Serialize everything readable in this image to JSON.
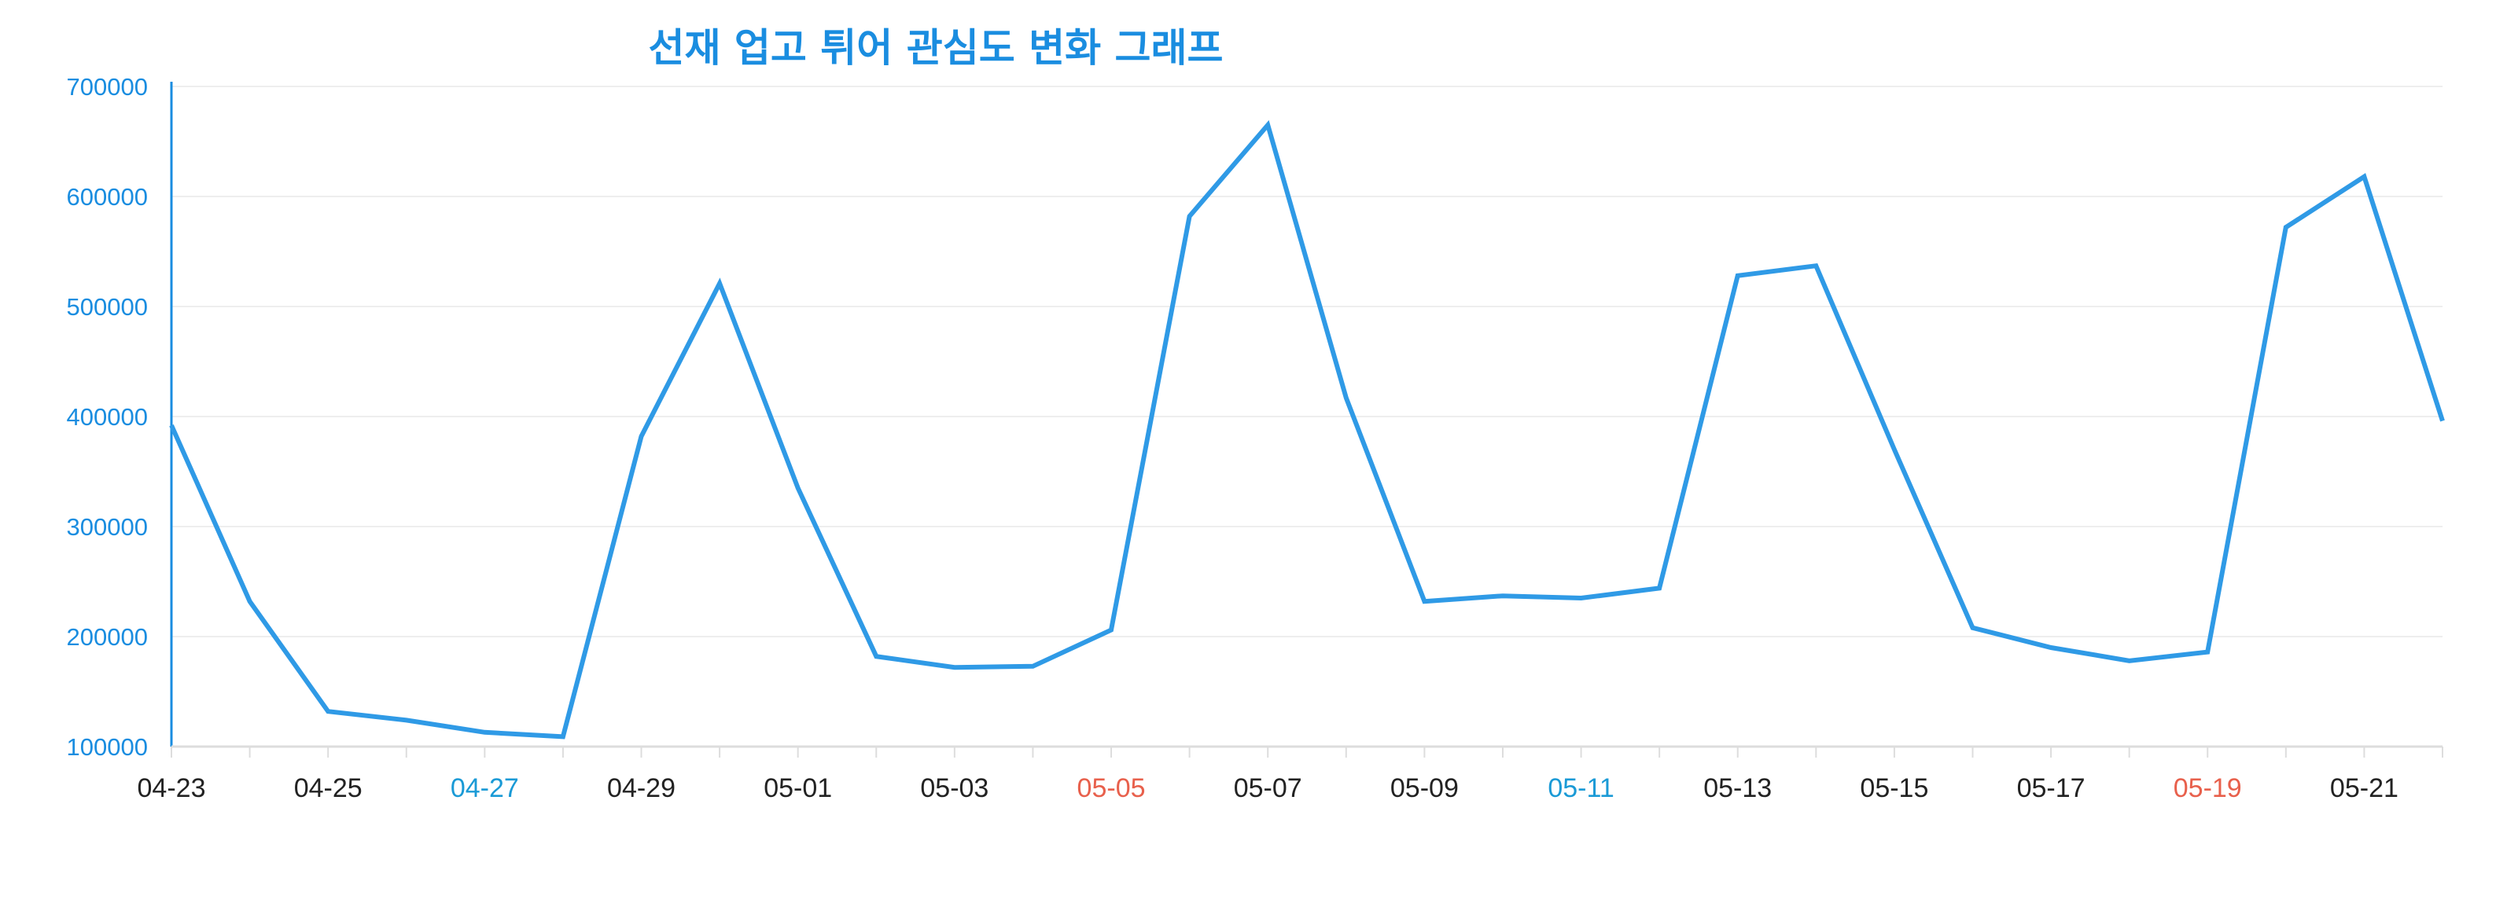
{
  "chart_data": {
    "type": "line",
    "title": "선재 업고 튀어 관심도 변화 그래프",
    "xlabel": "",
    "ylabel": "",
    "ylim": [
      100000,
      700000
    ],
    "yticks": [
      100000,
      200000,
      300000,
      400000,
      500000,
      600000,
      700000
    ],
    "grid": true,
    "legend": "none",
    "x": [
      "04-23",
      "04-24",
      "04-25",
      "04-26",
      "04-27",
      "04-28",
      "04-29",
      "04-30",
      "05-01",
      "05-02",
      "05-03",
      "05-04",
      "05-05",
      "05-06",
      "05-07",
      "05-08",
      "05-09",
      "05-10",
      "05-11",
      "05-12",
      "05-13",
      "05-14",
      "05-15",
      "05-16",
      "05-17",
      "05-18",
      "05-19",
      "05-20",
      "05-21",
      "05-22"
    ],
    "x_tick_labels": [
      {
        "label": "04-23",
        "color": "#222222"
      },
      {
        "label": "04-25",
        "color": "#222222"
      },
      {
        "label": "04-27",
        "color": "#1a9ad6"
      },
      {
        "label": "04-29",
        "color": "#222222"
      },
      {
        "label": "05-01",
        "color": "#222222"
      },
      {
        "label": "05-03",
        "color": "#222222"
      },
      {
        "label": "05-05",
        "color": "#e8604c"
      },
      {
        "label": "05-07",
        "color": "#222222"
      },
      {
        "label": "05-09",
        "color": "#222222"
      },
      {
        "label": "05-11",
        "color": "#1a9ad6"
      },
      {
        "label": "05-13",
        "color": "#222222"
      },
      {
        "label": "05-15",
        "color": "#222222"
      },
      {
        "label": "05-17",
        "color": "#222222"
      },
      {
        "label": "05-19",
        "color": "#e8604c"
      },
      {
        "label": "05-21",
        "color": "#222222"
      }
    ],
    "series": [
      {
        "values": [
          392000,
          232000,
          132000,
          124000,
          113000,
          109000,
          382000,
          521000,
          335000,
          182000,
          172000,
          173000,
          206000,
          582000,
          665000,
          417000,
          232000,
          237000,
          235000,
          244000,
          528000,
          537000,
          370000,
          208000,
          190000,
          178000,
          186000,
          572000,
          618000,
          396000
        ],
        "color": "#2f9ae6"
      }
    ]
  },
  "colors": {
    "title": "#1a8de0",
    "y_axis": "#1a8de0",
    "y_tick_label": "#1a8de0",
    "grid": "#eeeeee",
    "x_axis": "#dddddd",
    "line": "#2f9ae6",
    "x_label_default": "#222222",
    "x_label_saturday": "#1a9ad6",
    "x_label_sunday": "#e8604c"
  }
}
